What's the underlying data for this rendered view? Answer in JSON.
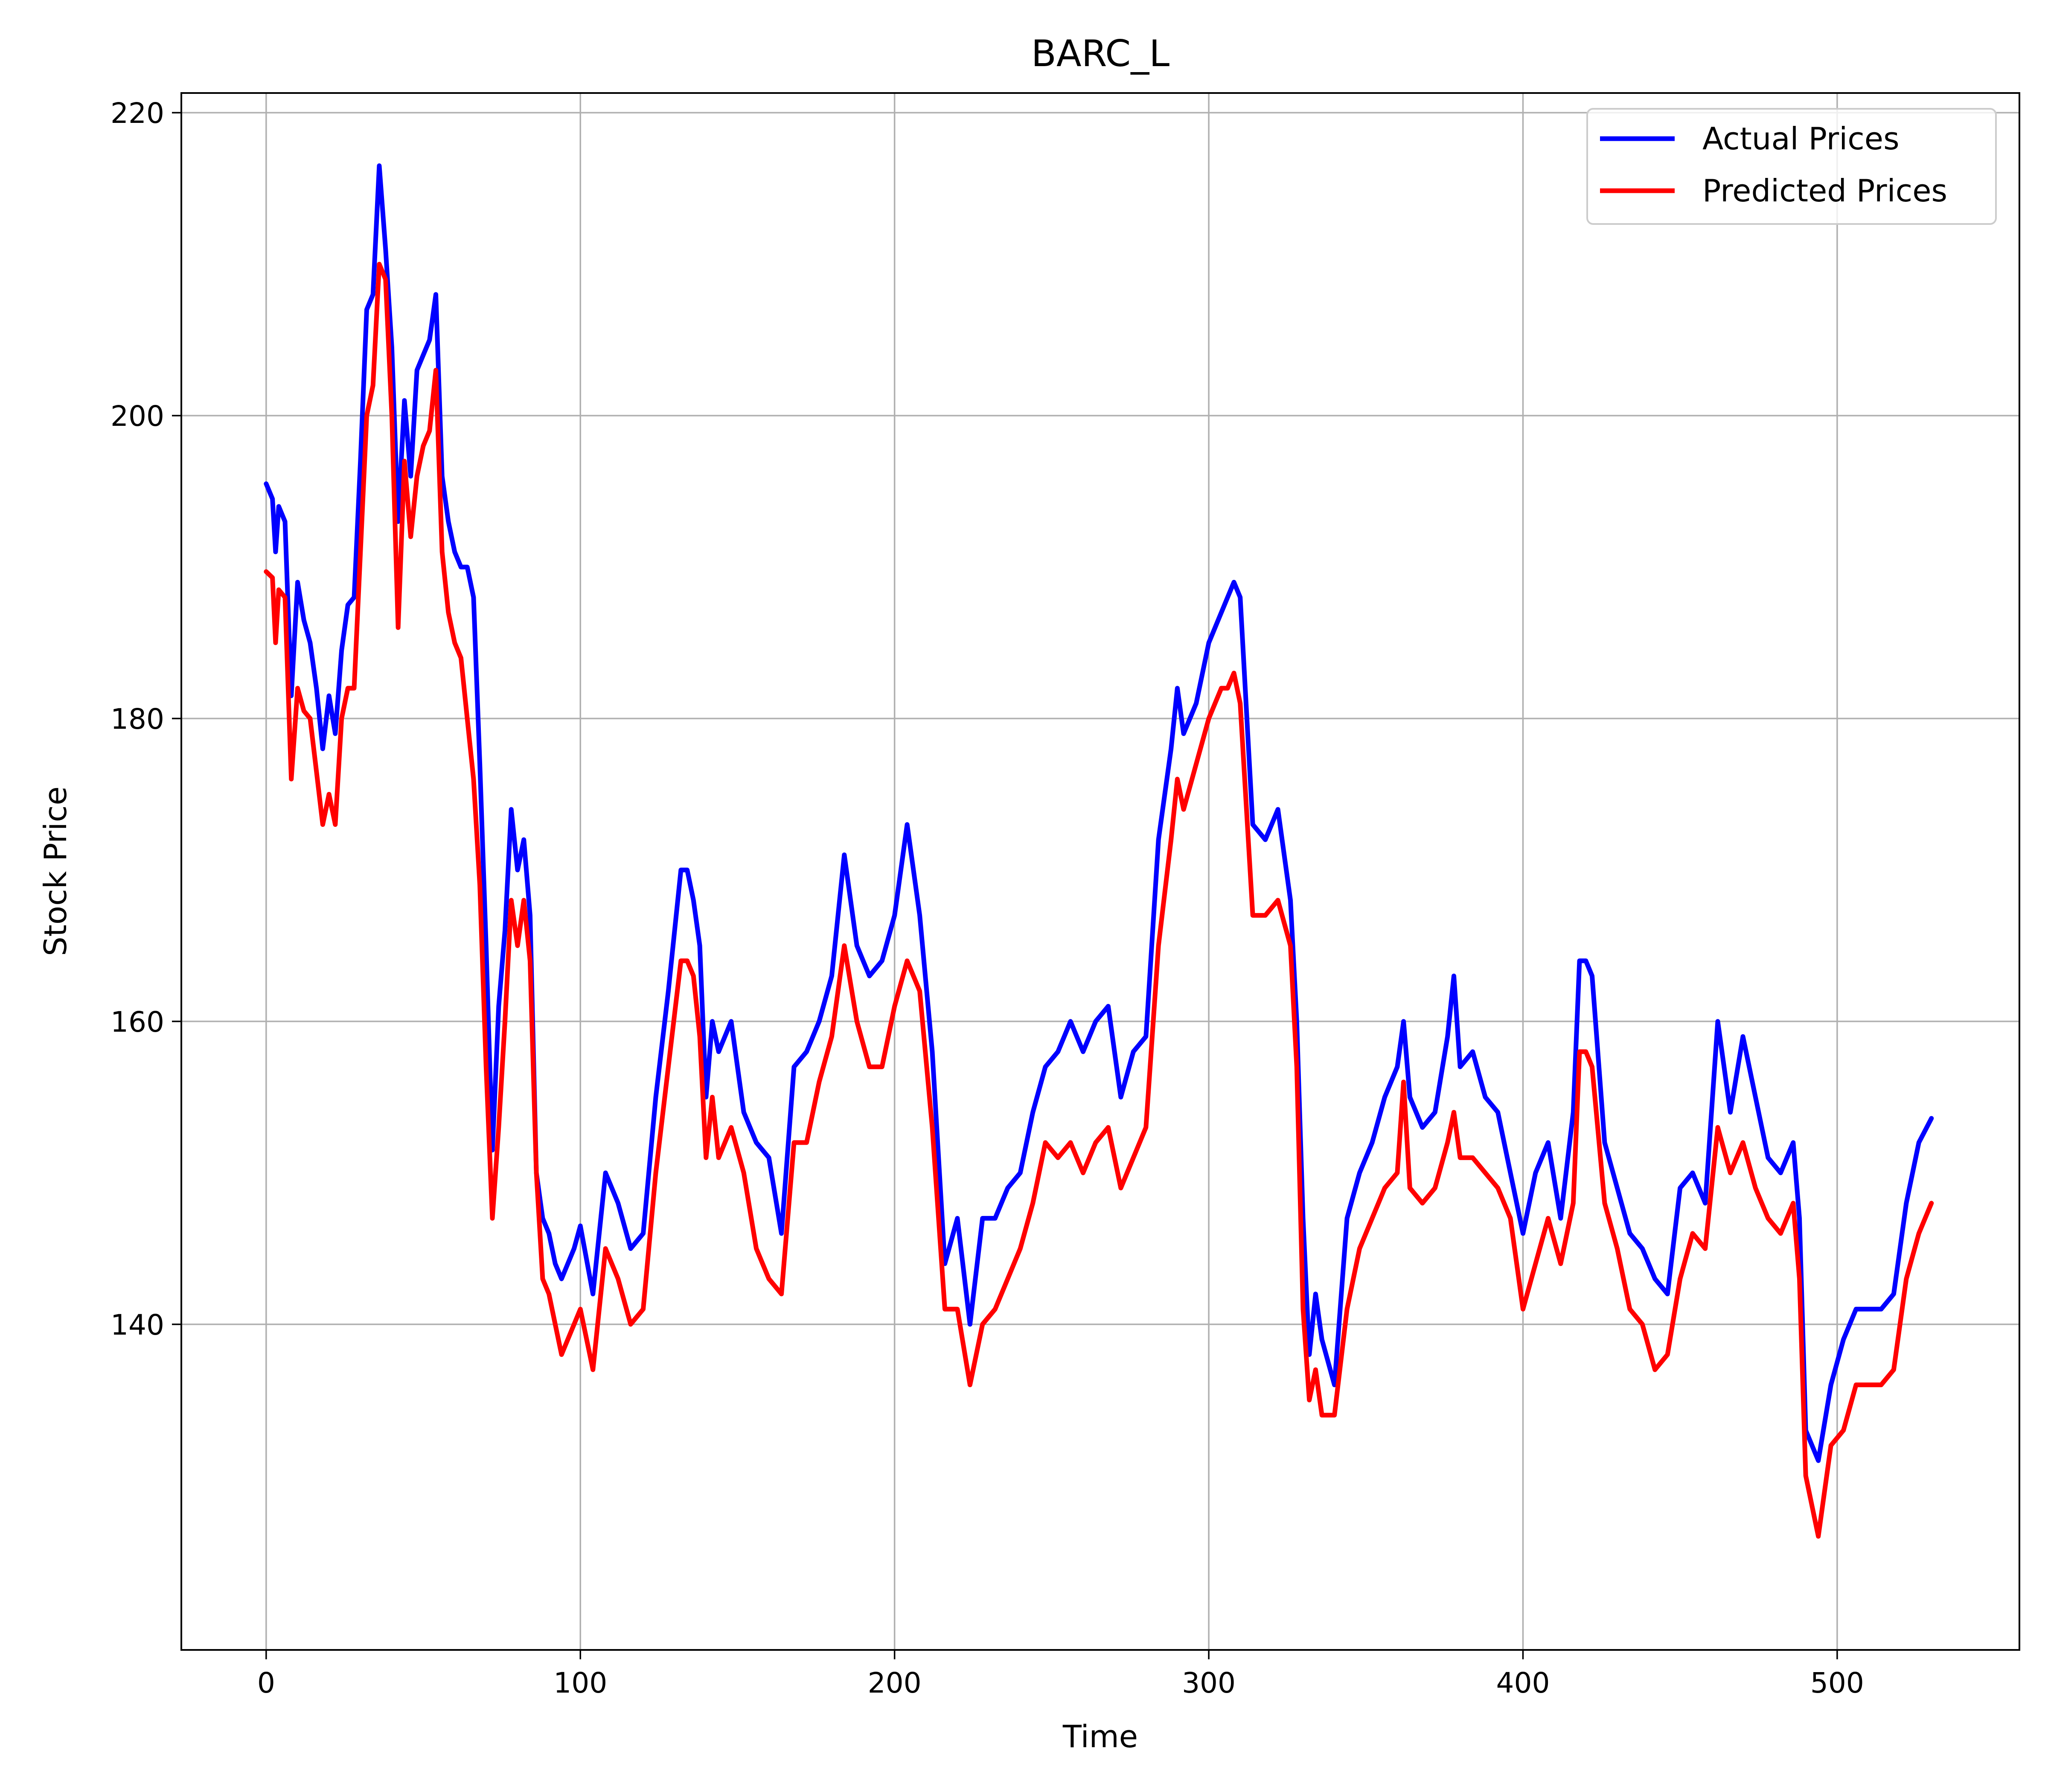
{
  "chart_data": {
    "type": "line",
    "title": "BARC_L",
    "xlabel": "Time",
    "ylabel": "Stock Price",
    "xlim": [
      -27,
      558
    ],
    "ylim": [
      118.5,
      221.3
    ],
    "xticks": [
      0,
      100,
      200,
      300,
      400,
      500
    ],
    "yticks": [
      140,
      160,
      180,
      200,
      220
    ],
    "grid": true,
    "legend_position": "top-right",
    "series": [
      {
        "name": "Actual Prices",
        "color": "#0000ff",
        "x": [
          0,
          2,
          3,
          4,
          6,
          8,
          10,
          12,
          14,
          16,
          18,
          20,
          22,
          24,
          26,
          28,
          30,
          32,
          34,
          36,
          38,
          40,
          42,
          44,
          46,
          48,
          50,
          52,
          54,
          56,
          58,
          60,
          62,
          64,
          66,
          68,
          70,
          72,
          74,
          76,
          78,
          80,
          82,
          84,
          86,
          88,
          90,
          92,
          94,
          96,
          98,
          100,
          104,
          108,
          112,
          116,
          120,
          124,
          128,
          132,
          134,
          136,
          138,
          140,
          142,
          144,
          148,
          152,
          156,
          160,
          164,
          168,
          172,
          176,
          180,
          184,
          188,
          192,
          196,
          200,
          204,
          208,
          212,
          216,
          220,
          224,
          228,
          232,
          236,
          240,
          244,
          248,
          252,
          256,
          260,
          264,
          268,
          272,
          276,
          280,
          284,
          288,
          290,
          292,
          296,
          300,
          304,
          306,
          308,
          310,
          314,
          318,
          322,
          326,
          328,
          330,
          332,
          334,
          336,
          340,
          344,
          348,
          352,
          356,
          360,
          362,
          364,
          368,
          372,
          376,
          378,
          380,
          384,
          388,
          392,
          396,
          400,
          404,
          408,
          412,
          416,
          418,
          420,
          422,
          426,
          430,
          434,
          438,
          442,
          446,
          450,
          454,
          458,
          462,
          466,
          470,
          474,
          478,
          482,
          486,
          488,
          490,
          494,
          498,
          502,
          506,
          510,
          514,
          518,
          522,
          526,
          530
        ],
        "y": [
          195.5,
          194.5,
          191,
          194,
          193,
          181.5,
          189,
          186.5,
          185,
          182,
          178,
          181.5,
          179,
          184.5,
          187.5,
          188,
          197,
          207,
          208,
          216.5,
          211,
          204.5,
          193,
          201,
          196,
          203,
          204,
          205,
          208,
          196,
          193,
          191,
          190,
          190,
          188,
          177,
          165,
          151.5,
          161,
          166,
          174,
          170,
          172,
          167,
          150,
          147,
          146,
          144,
          143,
          144,
          145,
          146.5,
          142,
          150,
          148,
          145,
          146,
          155,
          162,
          170,
          170,
          168,
          165,
          155,
          160,
          158,
          160,
          154,
          152,
          151,
          146,
          157,
          158,
          160,
          163,
          171,
          165,
          163,
          164,
          167,
          173,
          167,
          158,
          144,
          147,
          140,
          147,
          147,
          149,
          150,
          154,
          157,
          158,
          160,
          158,
          160,
          161,
          155,
          158,
          159,
          172,
          178,
          182,
          179,
          181,
          185,
          187,
          188,
          189,
          188,
          173,
          172,
          174,
          168,
          160,
          147,
          138,
          142,
          139,
          136,
          147,
          150,
          152,
          155,
          157,
          160,
          155,
          153,
          154,
          159,
          163,
          157,
          158,
          155,
          154,
          150,
          146,
          150,
          152,
          147,
          154,
          164,
          164,
          163,
          152,
          149,
          146,
          145,
          143,
          142,
          149,
          150,
          148,
          160,
          154,
          159,
          155,
          151,
          150,
          152,
          147,
          133,
          131,
          136,
          139,
          141,
          141,
          141,
          142,
          148,
          152,
          153.6
        ]
      },
      {
        "name": "Predicted Prices",
        "color": "#ff0000",
        "x": [
          0,
          2,
          3,
          4,
          6,
          8,
          10,
          12,
          14,
          16,
          18,
          20,
          22,
          24,
          26,
          28,
          30,
          32,
          34,
          36,
          38,
          40,
          42,
          44,
          46,
          48,
          50,
          52,
          54,
          56,
          58,
          60,
          62,
          64,
          66,
          68,
          70,
          72,
          74,
          76,
          78,
          80,
          82,
          84,
          86,
          88,
          90,
          92,
          94,
          96,
          98,
          100,
          104,
          108,
          112,
          116,
          120,
          124,
          128,
          132,
          134,
          136,
          138,
          140,
          142,
          144,
          148,
          152,
          156,
          160,
          164,
          168,
          172,
          176,
          180,
          184,
          188,
          192,
          196,
          200,
          204,
          208,
          212,
          216,
          220,
          224,
          228,
          232,
          236,
          240,
          244,
          248,
          252,
          256,
          260,
          264,
          268,
          272,
          276,
          280,
          284,
          288,
          290,
          292,
          296,
          300,
          304,
          306,
          308,
          310,
          314,
          318,
          322,
          326,
          328,
          330,
          332,
          334,
          336,
          340,
          344,
          348,
          352,
          356,
          360,
          362,
          364,
          368,
          372,
          376,
          378,
          380,
          384,
          388,
          392,
          396,
          400,
          404,
          408,
          412,
          416,
          418,
          420,
          422,
          426,
          430,
          434,
          438,
          442,
          446,
          450,
          454,
          458,
          462,
          466,
          470,
          474,
          478,
          482,
          486,
          488,
          490,
          494,
          498,
          502,
          506,
          510,
          514,
          518,
          522,
          526,
          530
        ],
        "y": [
          189.7,
          189.3,
          185,
          188.5,
          188,
          176,
          182,
          180.5,
          180,
          176.5,
          173,
          175,
          173,
          180,
          182,
          182,
          191,
          200,
          202,
          210,
          209,
          200,
          186,
          197,
          192,
          196,
          198,
          199,
          203,
          191,
          187,
          185,
          184,
          180,
          176,
          169,
          157,
          147,
          153,
          160,
          168,
          165,
          168,
          164,
          150,
          143,
          142,
          140,
          138,
          139,
          140,
          141,
          137,
          145,
          143,
          140,
          141,
          150,
          157,
          164,
          164,
          163,
          159,
          151,
          155,
          151,
          153,
          150,
          145,
          143,
          142,
          152,
          152,
          156,
          159,
          165,
          160,
          157,
          157,
          161,
          164,
          162,
          153,
          141,
          141,
          136,
          140,
          141,
          143,
          145,
          148,
          152,
          151,
          152,
          150,
          152,
          153,
          149,
          151,
          153,
          165,
          172,
          176,
          174,
          177,
          180,
          182,
          182,
          183,
          181,
          167,
          167,
          168,
          165,
          157,
          141,
          135,
          137,
          134,
          134,
          141,
          145,
          147,
          149,
          150,
          156,
          149,
          148,
          149,
          152,
          154,
          151,
          151,
          150,
          149,
          147,
          141,
          144,
          147,
          144,
          148,
          158,
          158,
          157,
          148,
          145,
          141,
          140,
          137,
          138,
          143,
          146,
          145,
          153,
          150,
          152,
          149,
          147,
          146,
          148,
          143,
          130,
          126,
          132,
          133,
          136,
          136,
          136,
          137,
          143,
          146,
          148
        ]
      }
    ]
  }
}
